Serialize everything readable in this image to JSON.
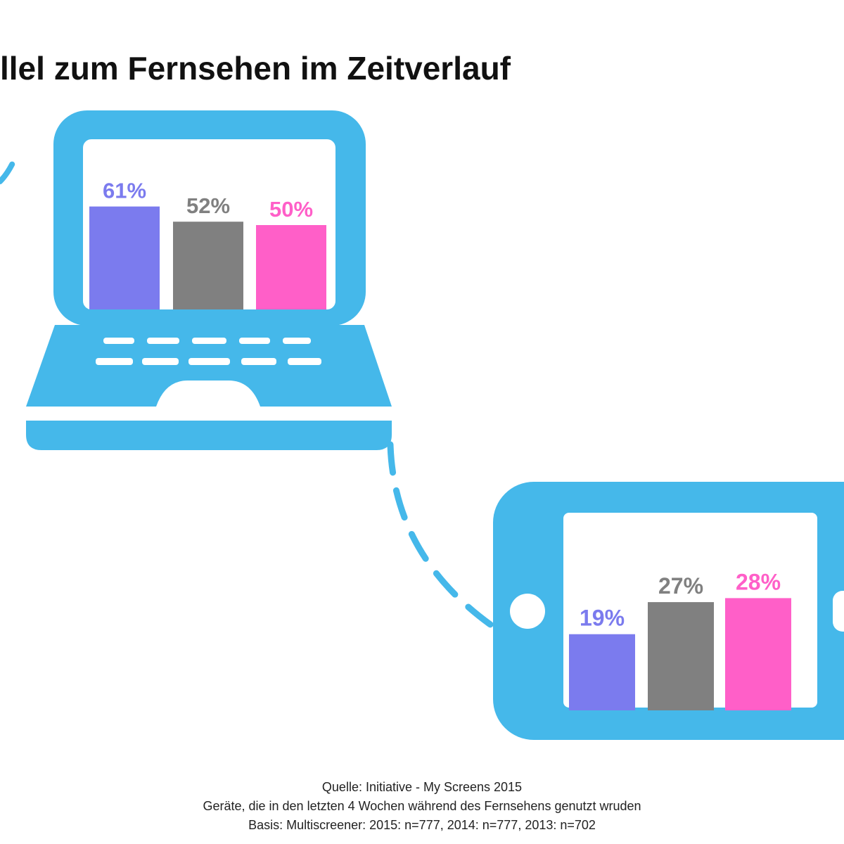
{
  "title": "llel zum Fernsehen im Zeitverlauf",
  "colors": {
    "device": "#45b8ea",
    "s2015": "#7b7bee",
    "s2014": "#808080",
    "s2013": "#ff5fc8"
  },
  "icons": [
    "laptop-icon",
    "smartphone-icon"
  ],
  "chart_data": [
    {
      "type": "bar",
      "device": "laptop",
      "series": [
        {
          "values": [
            61
          ],
          "label": "61%",
          "color": "#7b7bee"
        },
        {
          "values": [
            52
          ],
          "label": "52%",
          "color": "#808080"
        },
        {
          "values": [
            50
          ],
          "label": "50%",
          "color": "#ff5fc8"
        }
      ],
      "ylim": [
        0,
        100
      ]
    },
    {
      "type": "bar",
      "device": "smartphone",
      "series": [
        {
          "values": [
            19
          ],
          "label": "19%",
          "color": "#7b7bee"
        },
        {
          "values": [
            27
          ],
          "label": "27%",
          "color": "#808080"
        },
        {
          "values": [
            28
          ],
          "label": "28%",
          "color": "#ff5fc8"
        }
      ],
      "ylim": [
        0,
        100
      ]
    }
  ],
  "source": {
    "line1": "Quelle: Initiative - My Screens 2015",
    "line2": "Geräte, die in den letzten 4 Wochen während des Fernsehens genutzt wruden",
    "line3": "Basis: Multiscreener: 2015: n=777, 2014: n=777, 2013: n=702"
  }
}
